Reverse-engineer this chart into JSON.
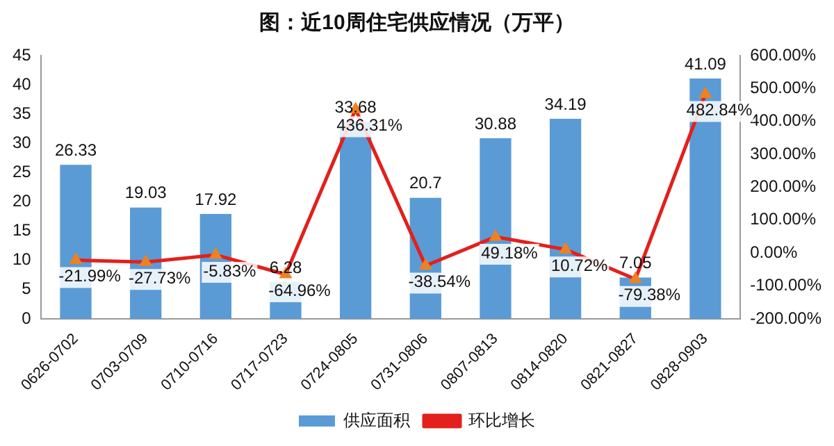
{
  "chart_data": {
    "type": "bar",
    "title": "图：近10周住宅供应情况（万平）",
    "categories": [
      "0626-0702",
      "0703-0709",
      "0710-0716",
      "0717-0723",
      "0724-0805",
      "0731-0806",
      "0807-0813",
      "0814-0820",
      "0821-0827",
      "0828-0903"
    ],
    "series": [
      {
        "name": "供应面积",
        "color": "#5b9bd5",
        "values": [
          26.33,
          19.03,
          17.92,
          6.28,
          33.68,
          20.7,
          30.88,
          34.19,
          7.05,
          41.09
        ],
        "value_labels": [
          "26.33",
          "19.03",
          "17.92",
          "6.28",
          "33.68",
          "20.7",
          "30.88",
          "34.19",
          "7.05",
          "41.09"
        ]
      },
      {
        "name": "环比增长",
        "type": "line",
        "axis": "y2",
        "color": "#e3201b",
        "marker": "triangle",
        "values": [
          -21.99,
          -27.73,
          -5.83,
          -64.96,
          436.31,
          -38.54,
          49.18,
          10.72,
          -79.38,
          482.84
        ],
        "value_labels": [
          "-21.99%",
          "-27.73%",
          "-5.83%",
          "-64.96%",
          "436.31%",
          "-38.54%",
          "49.18%",
          "10.72%",
          "-79.38%",
          "482.84%"
        ]
      }
    ],
    "ylim": [
      0,
      45
    ],
    "yticks": [
      0,
      5,
      10,
      15,
      20,
      25,
      30,
      35,
      40,
      45
    ],
    "y2lim": [
      -200,
      600
    ],
    "y2ticks": [
      {
        "value": -200,
        "label": "-200.00%"
      },
      {
        "value": -100,
        "label": "-100.00%"
      },
      {
        "value": 0,
        "label": "0.00%"
      },
      {
        "value": 100,
        "label": "100.00%"
      },
      {
        "value": 200,
        "label": "200.00%"
      },
      {
        "value": 300,
        "label": "300.00%"
      },
      {
        "value": 400,
        "label": "400.00%"
      },
      {
        "value": 500,
        "label": "500.00%"
      },
      {
        "value": 600,
        "label": "600.00%"
      }
    ],
    "grid": false,
    "legend": "bottom"
  }
}
